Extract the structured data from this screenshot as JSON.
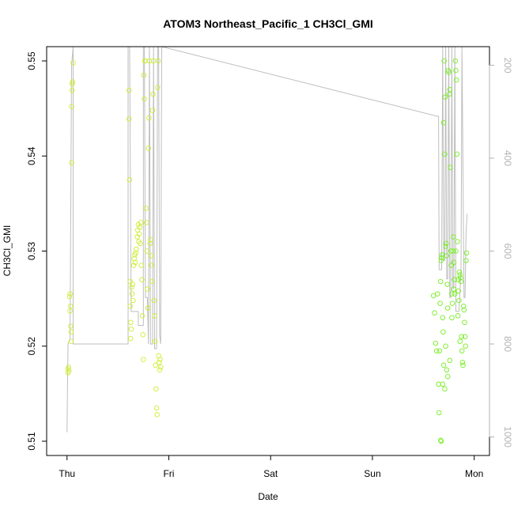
{
  "chart_data": {
    "type": "scatter",
    "title": "ATOM3 Northeast_Pacific_1 CH3Cl_GMI",
    "xlabel": "Date",
    "ylabel": "CH3Cl_GMI",
    "x_ticks": [
      "Thu",
      "Fri",
      "Sat",
      "Sun",
      "Mon"
    ],
    "x_range_days": [
      -0.2,
      4.15
    ],
    "y_ticks": [
      "0.51",
      "0.52",
      "0.53",
      "0.54",
      "0.55"
    ],
    "ylim": [
      0.5085,
      0.5515
    ],
    "y2_ticks": [
      "200",
      "400",
      "600",
      "800",
      "1000"
    ],
    "y2lim": [
      1040,
      160
    ],
    "y2_reversed": true,
    "grid": false,
    "colors": {
      "points_early": "#ccee33",
      "points_late": "#77ee22",
      "pressure_line": "#bebebe",
      "axis": "#000000"
    },
    "series_points": [
      {
        "x": 0.01,
        "y": 0.5172
      },
      {
        "x": 0.01,
        "y": 0.5176
      },
      {
        "x": 0.015,
        "y": 0.5178
      },
      {
        "x": 0.02,
        "y": 0.5174
      },
      {
        "x": 0.025,
        "y": 0.5252
      },
      {
        "x": 0.03,
        "y": 0.5255
      },
      {
        "x": 0.03,
        "y": 0.5237
      },
      {
        "x": 0.035,
        "y": 0.5242
      },
      {
        "x": 0.035,
        "y": 0.5221
      },
      {
        "x": 0.04,
        "y": 0.5205
      },
      {
        "x": 0.04,
        "y": 0.5215
      },
      {
        "x": 0.045,
        "y": 0.5393
      },
      {
        "x": 0.045,
        "y": 0.5452
      },
      {
        "x": 0.05,
        "y": 0.5469
      },
      {
        "x": 0.05,
        "y": 0.5476
      },
      {
        "x": 0.055,
        "y": 0.5478
      },
      {
        "x": 0.06,
        "y": 0.5498
      },
      {
        "x": 0.61,
        "y": 0.5469
      },
      {
        "x": 0.61,
        "y": 0.5439
      },
      {
        "x": 0.615,
        "y": 0.5375
      },
      {
        "x": 0.62,
        "y": 0.5268
      },
      {
        "x": 0.62,
        "y": 0.5242
      },
      {
        "x": 0.625,
        "y": 0.5225
      },
      {
        "x": 0.625,
        "y": 0.5208
      },
      {
        "x": 0.63,
        "y": 0.5218
      },
      {
        "x": 0.635,
        "y": 0.5262
      },
      {
        "x": 0.64,
        "y": 0.5255
      },
      {
        "x": 0.645,
        "y": 0.5265
      },
      {
        "x": 0.65,
        "y": 0.5248
      },
      {
        "x": 0.655,
        "y": 0.5285
      },
      {
        "x": 0.66,
        "y": 0.5292
      },
      {
        "x": 0.665,
        "y": 0.5296
      },
      {
        "x": 0.67,
        "y": 0.5288
      },
      {
        "x": 0.675,
        "y": 0.5298
      },
      {
        "x": 0.68,
        "y": 0.5302
      },
      {
        "x": 0.69,
        "y": 0.5315
      },
      {
        "x": 0.695,
        "y": 0.5322
      },
      {
        "x": 0.7,
        "y": 0.5328
      },
      {
        "x": 0.705,
        "y": 0.531
      },
      {
        "x": 0.71,
        "y": 0.5318
      },
      {
        "x": 0.715,
        "y": 0.5325
      },
      {
        "x": 0.72,
        "y": 0.5308
      },
      {
        "x": 0.725,
        "y": 0.533
      },
      {
        "x": 0.73,
        "y": 0.5285
      },
      {
        "x": 0.735,
        "y": 0.527
      },
      {
        "x": 0.74,
        "y": 0.5232
      },
      {
        "x": 0.745,
        "y": 0.5212
      },
      {
        "x": 0.75,
        "y": 0.5186
      },
      {
        "x": 0.755,
        "y": 0.5485
      },
      {
        "x": 0.76,
        "y": 0.546
      },
      {
        "x": 0.765,
        "y": 0.55
      },
      {
        "x": 0.77,
        "y": 0.55
      },
      {
        "x": 0.775,
        "y": 0.5345
      },
      {
        "x": 0.78,
        "y": 0.533
      },
      {
        "x": 0.785,
        "y": 0.53
      },
      {
        "x": 0.79,
        "y": 0.526
      },
      {
        "x": 0.795,
        "y": 0.524
      },
      {
        "x": 0.8,
        "y": 0.5408
      },
      {
        "x": 0.805,
        "y": 0.544
      },
      {
        "x": 0.81,
        "y": 0.55
      },
      {
        "x": 0.815,
        "y": 0.5308
      },
      {
        "x": 0.82,
        "y": 0.5312
      },
      {
        "x": 0.825,
        "y": 0.5295
      },
      {
        "x": 0.83,
        "y": 0.5285
      },
      {
        "x": 0.835,
        "y": 0.5268
      },
      {
        "x": 0.84,
        "y": 0.5448
      },
      {
        "x": 0.845,
        "y": 0.5465
      },
      {
        "x": 0.85,
        "y": 0.55
      },
      {
        "x": 0.855,
        "y": 0.5248
      },
      {
        "x": 0.86,
        "y": 0.5232
      },
      {
        "x": 0.865,
        "y": 0.5205
      },
      {
        "x": 0.87,
        "y": 0.518
      },
      {
        "x": 0.875,
        "y": 0.5155
      },
      {
        "x": 0.88,
        "y": 0.5135
      },
      {
        "x": 0.885,
        "y": 0.5128
      },
      {
        "x": 0.89,
        "y": 0.5472
      },
      {
        "x": 0.895,
        "y": 0.55
      },
      {
        "x": 0.9,
        "y": 0.519
      },
      {
        "x": 0.905,
        "y": 0.5183
      },
      {
        "x": 0.91,
        "y": 0.5175
      },
      {
        "x": 0.915,
        "y": 0.5186
      },
      {
        "x": 0.92,
        "y": 0.5178
      },
      {
        "x": 3.66,
        "y": 0.5195
      },
      {
        "x": 3.665,
        "y": 0.5245
      },
      {
        "x": 3.67,
        "y": 0.5268
      },
      {
        "x": 3.675,
        "y": 0.529
      },
      {
        "x": 3.68,
        "y": 0.5293
      },
      {
        "x": 3.685,
        "y": 0.5296
      },
      {
        "x": 3.69,
        "y": 0.523
      },
      {
        "x": 3.695,
        "y": 0.5215
      },
      {
        "x": 3.7,
        "y": 0.5435
      },
      {
        "x": 3.705,
        "y": 0.55
      },
      {
        "x": 3.71,
        "y": 0.5402
      },
      {
        "x": 3.715,
        "y": 0.5462
      },
      {
        "x": 3.72,
        "y": 0.5305
      },
      {
        "x": 3.725,
        "y": 0.5308
      },
      {
        "x": 3.73,
        "y": 0.5295
      },
      {
        "x": 3.735,
        "y": 0.5265
      },
      {
        "x": 3.74,
        "y": 0.524
      },
      {
        "x": 3.745,
        "y": 0.549
      },
      {
        "x": 3.75,
        "y": 0.5488
      },
      {
        "x": 3.755,
        "y": 0.5465
      },
      {
        "x": 3.76,
        "y": 0.547
      },
      {
        "x": 3.765,
        "y": 0.5388
      },
      {
        "x": 3.77,
        "y": 0.53
      },
      {
        "x": 3.775,
        "y": 0.5285
      },
      {
        "x": 3.78,
        "y": 0.5255
      },
      {
        "x": 3.785,
        "y": 0.5245
      },
      {
        "x": 3.79,
        "y": 0.53
      },
      {
        "x": 3.795,
        "y": 0.5315
      },
      {
        "x": 3.8,
        "y": 0.5288
      },
      {
        "x": 3.805,
        "y": 0.527
      },
      {
        "x": 3.81,
        "y": 0.5255
      },
      {
        "x": 3.815,
        "y": 0.55
      },
      {
        "x": 3.82,
        "y": 0.549
      },
      {
        "x": 3.825,
        "y": 0.548
      },
      {
        "x": 3.83,
        "y": 0.5402
      },
      {
        "x": 3.835,
        "y": 0.531
      },
      {
        "x": 3.84,
        "y": 0.527
      },
      {
        "x": 3.845,
        "y": 0.5258
      },
      {
        "x": 3.85,
        "y": 0.5248
      },
      {
        "x": 3.855,
        "y": 0.5278
      },
      {
        "x": 3.86,
        "y": 0.5275
      },
      {
        "x": 3.865,
        "y": 0.5272
      },
      {
        "x": 3.87,
        "y": 0.5268
      },
      {
        "x": 3.875,
        "y": 0.521
      },
      {
        "x": 3.88,
        "y": 0.5195
      },
      {
        "x": 3.885,
        "y": 0.5183
      },
      {
        "x": 3.89,
        "y": 0.518
      },
      {
        "x": 3.895,
        "y": 0.5242
      },
      {
        "x": 3.9,
        "y": 0.5238
      },
      {
        "x": 3.905,
        "y": 0.5225
      },
      {
        "x": 3.91,
        "y": 0.521
      },
      {
        "x": 3.915,
        "y": 0.52
      },
      {
        "x": 3.92,
        "y": 0.529
      },
      {
        "x": 3.925,
        "y": 0.5298
      },
      {
        "x": 3.6,
        "y": 0.5253
      },
      {
        "x": 3.61,
        "y": 0.5235
      },
      {
        "x": 3.62,
        "y": 0.5203
      },
      {
        "x": 3.63,
        "y": 0.5195
      },
      {
        "x": 3.64,
        "y": 0.5255
      },
      {
        "x": 3.65,
        "y": 0.516
      },
      {
        "x": 3.655,
        "y": 0.513
      },
      {
        "x": 3.67,
        "y": 0.5101
      },
      {
        "x": 3.675,
        "y": 0.51
      },
      {
        "x": 3.69,
        "y": 0.516
      },
      {
        "x": 3.7,
        "y": 0.518
      },
      {
        "x": 3.71,
        "y": 0.5155
      },
      {
        "x": 3.72,
        "y": 0.52
      },
      {
        "x": 3.73,
        "y": 0.5175
      },
      {
        "x": 3.74,
        "y": 0.5168
      },
      {
        "x": 3.76,
        "y": 0.5185
      },
      {
        "x": 3.78,
        "y": 0.523
      },
      {
        "x": 3.8,
        "y": 0.526
      },
      {
        "x": 3.82,
        "y": 0.53
      },
      {
        "x": 3.84,
        "y": 0.5232
      },
      {
        "x": 3.86,
        "y": 0.5205
      }
    ],
    "series_pressure_hpa": [
      [
        0.0,
        990
      ],
      [
        0.01,
        800
      ],
      [
        0.03,
        790
      ],
      [
        0.045,
        200
      ],
      [
        0.06,
        160
      ],
      [
        0.06,
        800
      ],
      [
        0.6,
        800
      ],
      [
        0.6,
        160
      ],
      [
        0.615,
        160
      ],
      [
        0.63,
        730
      ],
      [
        0.7,
        730
      ],
      [
        0.7,
        760
      ],
      [
        0.75,
        760
      ],
      [
        0.75,
        160
      ],
      [
        0.76,
        160
      ],
      [
        0.77,
        700
      ],
      [
        0.79,
        700
      ],
      [
        0.8,
        800
      ],
      [
        0.81,
        160
      ],
      [
        0.82,
        800
      ],
      [
        0.84,
        800
      ],
      [
        0.85,
        160
      ],
      [
        0.86,
        810
      ],
      [
        0.88,
        810
      ],
      [
        0.89,
        160
      ],
      [
        0.9,
        160
      ],
      [
        0.91,
        780
      ],
      [
        0.92,
        800
      ],
      [
        0.93,
        160
      ],
      [
        3.64,
        310
      ],
      [
        3.65,
        310
      ],
      [
        3.655,
        640
      ],
      [
        3.68,
        640
      ],
      [
        3.69,
        160
      ],
      [
        3.7,
        620
      ],
      [
        3.71,
        620
      ],
      [
        3.72,
        160
      ],
      [
        3.73,
        660
      ],
      [
        3.74,
        660
      ],
      [
        3.75,
        160
      ],
      [
        3.76,
        700
      ],
      [
        3.77,
        700
      ],
      [
        3.78,
        160
      ],
      [
        3.79,
        680
      ],
      [
        3.8,
        680
      ],
      [
        3.81,
        160
      ],
      [
        3.82,
        730
      ],
      [
        3.85,
        730
      ],
      [
        3.87,
        640
      ],
      [
        3.88,
        160
      ],
      [
        3.9,
        700
      ],
      [
        3.91,
        700
      ],
      [
        3.92,
        560
      ],
      [
        3.93,
        520
      ]
    ]
  }
}
